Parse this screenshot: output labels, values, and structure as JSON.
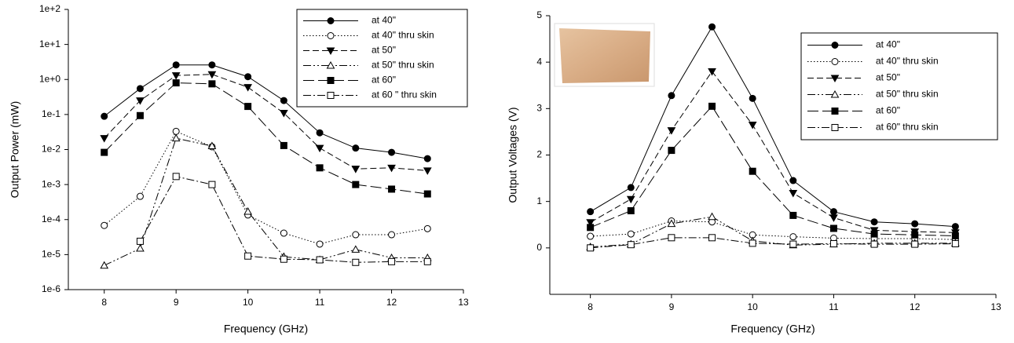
{
  "chart_data": [
    {
      "type": "line",
      "log_y": true,
      "legend": "upper right",
      "x_label": "Frequency (GHz)",
      "y_label": "Output Power (mW)",
      "xlim": [
        7.5,
        13
      ],
      "xticks": [
        8,
        9,
        10,
        11,
        12,
        13
      ],
      "ylim": [
        1e-06,
        100
      ],
      "yticks": [
        {
          "value": 1e-06,
          "label": "1e-6"
        },
        {
          "value": 1e-05,
          "label": "1e-5"
        },
        {
          "value": 0.0001,
          "label": "1e-4"
        },
        {
          "value": 0.001,
          "label": "1e-3"
        },
        {
          "value": 0.01,
          "label": "1e-2"
        },
        {
          "value": 0.1,
          "label": "1e-1"
        },
        {
          "value": 1,
          "label": "1e+0"
        },
        {
          "value": 10,
          "label": "1e+1"
        },
        {
          "value": 100,
          "label": "1e+2"
        }
      ],
      "x": [
        8,
        8.5,
        9,
        9.5,
        10,
        10.5,
        11,
        11.5,
        12,
        12.5
      ],
      "series": [
        {
          "name": "at 40\"",
          "color": "#000000",
          "marker": "circle",
          "filled": true,
          "line_style": "solid",
          "values": [
            0.089,
            0.55,
            2.6,
            2.6,
            1.2,
            0.25,
            0.03,
            0.011,
            0.0083,
            0.0055
          ]
        },
        {
          "name": "at 40\" thru skin",
          "color": "#000000",
          "marker": "circle",
          "filled": false,
          "line_style": "dotted",
          "values": [
            6.8e-05,
            0.00046,
            0.033,
            0.012,
            0.000135,
            4.1e-05,
            2e-05,
            3.7e-05,
            3.7e-05,
            5.5e-05
          ]
        },
        {
          "name": "at 50\"",
          "color": "#000000",
          "marker": "triangle-down",
          "filled": true,
          "line_style": "dashed",
          "values": [
            0.021,
            0.25,
            1.3,
            1.4,
            0.6,
            0.11,
            0.011,
            0.0028,
            0.003,
            0.0025
          ]
        },
        {
          "name": "at 50\" thru skin",
          "color": "#000000",
          "marker": "triangle-up",
          "filled": false,
          "line_style": "dash-dot-dot",
          "values": [
            4.9e-06,
            1.5e-05,
            0.021,
            0.0126,
            0.00017,
            8.7e-06,
            7.1e-06,
            1.4e-05,
            8.1e-06,
            8.1e-06
          ]
        },
        {
          "name": "at 60\"",
          "color": "#000000",
          "marker": "square",
          "filled": true,
          "line_style": "long-dash",
          "values": [
            0.0083,
            0.093,
            0.8,
            0.75,
            0.17,
            0.013,
            0.003,
            0.001,
            0.00074,
            0.00054
          ]
        },
        {
          "name": "at 60 \" thru skin",
          "color": "#000000",
          "marker": "square",
          "filled": false,
          "line_style": "dashdot",
          "values": [
            null,
            2.4e-05,
            0.0017,
            0.001,
            9.1e-06,
            7.4e-06,
            7.1e-06,
            6e-06,
            6.3e-06,
            6.3e-06
          ]
        }
      ]
    },
    {
      "type": "line",
      "log_y": false,
      "legend": "upper right",
      "x_label": "Frequency (GHz)",
      "y_label": "Output Voltages (V)",
      "xlim": [
        7.5,
        13
      ],
      "xticks": [
        8,
        9,
        10,
        11,
        12,
        13
      ],
      "ylim": [
        -1,
        5
      ],
      "yticks": [
        0,
        1,
        2,
        3,
        4,
        5
      ],
      "x": [
        8,
        8.5,
        9,
        9.5,
        10,
        10.5,
        11,
        11.5,
        12,
        12.5
      ],
      "series": [
        {
          "name": "at 40\"",
          "color": "#000000",
          "marker": "circle",
          "filled": true,
          "line_style": "solid",
          "values": [
            0.78,
            1.3,
            3.28,
            4.76,
            3.22,
            1.45,
            0.78,
            0.56,
            0.52,
            0.46
          ]
        },
        {
          "name": "at 40\" thru skin",
          "color": "#000000",
          "marker": "circle",
          "filled": false,
          "line_style": "dotted",
          "values": [
            0.25,
            0.3,
            0.58,
            0.56,
            0.28,
            0.24,
            0.21,
            0.2,
            0.2,
            0.18
          ]
        },
        {
          "name": "at 50\"",
          "color": "#000000",
          "marker": "triangle-down",
          "filled": true,
          "line_style": "dashed",
          "values": [
            0.55,
            1.05,
            2.53,
            3.8,
            2.65,
            1.18,
            0.65,
            0.38,
            0.35,
            0.33
          ]
        },
        {
          "name": "at 50\" thru skin",
          "color": "#000000",
          "marker": "triangle-up",
          "filled": false,
          "line_style": "dash-dot-dot",
          "values": [
            0.02,
            0.08,
            0.52,
            0.67,
            0.15,
            0.06,
            0.08,
            0.1,
            0.1,
            0.1
          ]
        },
        {
          "name": "at 60\"",
          "color": "#000000",
          "marker": "square",
          "filled": true,
          "line_style": "long-dash",
          "values": [
            0.44,
            0.8,
            2.1,
            3.05,
            1.65,
            0.7,
            0.42,
            0.3,
            0.28,
            0.26
          ]
        },
        {
          "name": "at 60\" thru skin",
          "color": "#000000",
          "marker": "square",
          "filled": false,
          "line_style": "dashdot",
          "values": [
            0,
            0.07,
            0.22,
            0.22,
            0.1,
            0.08,
            0.09,
            0.08,
            0.08,
            0.09
          ]
        }
      ]
    }
  ]
}
